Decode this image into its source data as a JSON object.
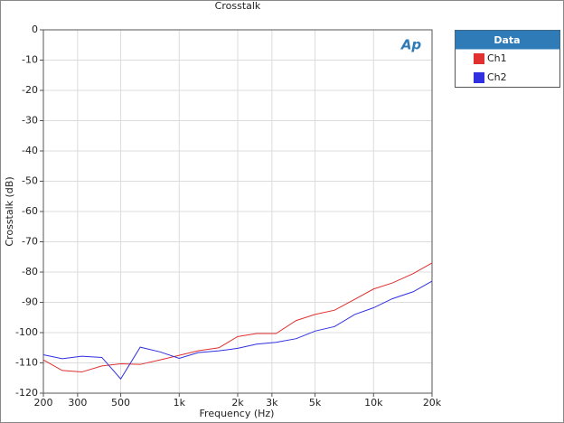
{
  "chart_data": {
    "type": "line",
    "title": "Crosstalk",
    "logo": "Ap",
    "x_label": "Frequency (Hz)",
    "y_label": "Crosstalk (dB)",
    "x": [
      200,
      250,
      315,
      400,
      500,
      630,
      800,
      1000,
      1250,
      1600,
      2000,
      2500,
      3150,
      4000,
      5000,
      6300,
      8000,
      10000,
      12500,
      16000,
      20000
    ],
    "series": [
      {
        "name": "Ch1",
        "color": "#e03030",
        "values": [
          -109,
          -112.5,
          -113,
          -111,
          -110.3,
          -110.5,
          -109,
          -107.5,
          -106,
          -105,
          -101.3,
          -100.3,
          -100.3,
          -96,
          -94,
          -92.6,
          -89,
          -85.6,
          -83.6,
          -80.5,
          -77
        ]
      },
      {
        "name": "Ch2",
        "color": "#3030e0",
        "values": [
          -107.3,
          -108.6,
          -107.8,
          -108.2,
          -115.3,
          -104.8,
          -106.4,
          -108.5,
          -106.6,
          -106,
          -105.2,
          -103.8,
          -103.2,
          -102,
          -99.5,
          -98,
          -94,
          -91.8,
          -88.8,
          -86.5,
          -83
        ]
      }
    ],
    "xlog": true,
    "xlim": [
      200,
      20000
    ],
    "xticks": [
      200,
      300,
      500,
      {
        "value": 1000,
        "label": "1k"
      },
      {
        "value": 2000,
        "label": "2k"
      },
      {
        "value": 3000,
        "label": "3k"
      },
      {
        "value": 5000,
        "label": "5k"
      },
      {
        "value": 10000,
        "label": "10k"
      },
      {
        "value": 20000,
        "label": "20k"
      }
    ],
    "ylim": [
      -120,
      0
    ],
    "yticks": [
      0,
      -10,
      -20,
      -30,
      -40,
      -50,
      -60,
      -70,
      -80,
      -90,
      -100,
      -110,
      -120
    ],
    "grid": true,
    "legend_title": "Data",
    "legend_position": "right"
  }
}
